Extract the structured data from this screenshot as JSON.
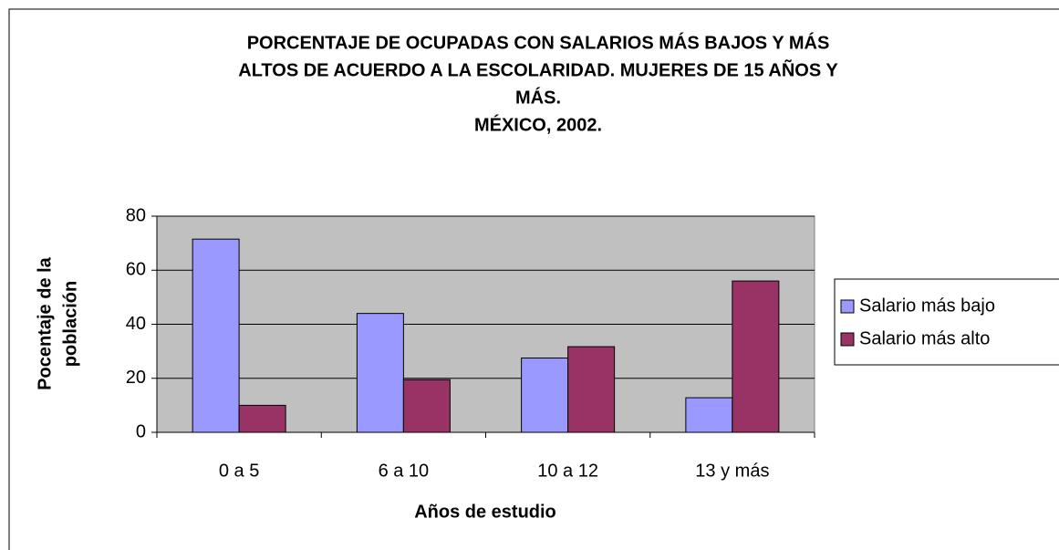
{
  "chart_data": {
    "type": "bar",
    "title": [
      "PORCENTAJE DE OCUPADAS CON SALARIOS MÁS BAJOS Y MÁS",
      "ALTOS DE ACUERDO A LA ESCOLARIDAD. MUJERES DE 15 AÑOS Y",
      "MÁS.",
      "MÉXICO, 2002."
    ],
    "x_label": "Años de estudio",
    "y_label": [
      "Pocentaje de la",
      "población"
    ],
    "categories": [
      "0 a 5",
      "6 a 10",
      "10 a 12",
      "13 y más"
    ],
    "series": [
      {
        "name": "Salario más bajo",
        "color": "#9999ff",
        "values": [
          71.5,
          44,
          27.5,
          12.8
        ]
      },
      {
        "name": "Salario más alto",
        "color": "#993366",
        "values": [
          10,
          19.5,
          31.7,
          56
        ]
      }
    ],
    "ylim": [
      0,
      80
    ],
    "yticks": [
      0,
      20,
      40,
      60,
      80
    ],
    "grid": true,
    "legend": "right",
    "plot_background": "#c0c0c0"
  }
}
